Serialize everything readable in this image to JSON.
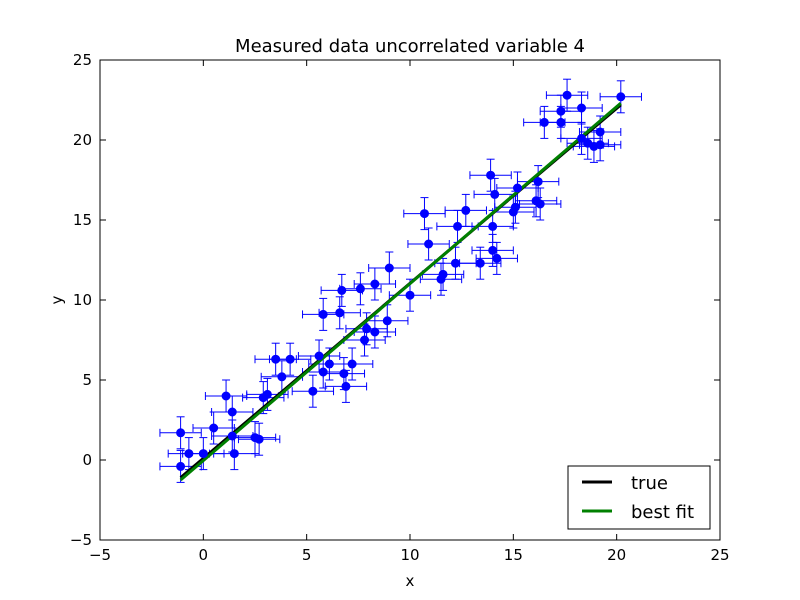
{
  "chart_data": {
    "type": "scatter",
    "title": "Measured data uncorrelated variable 4",
    "xlabel": "x",
    "ylabel": "y",
    "xlim": [
      -5,
      25
    ],
    "ylim": [
      -5,
      25
    ],
    "xticks": [
      -5,
      0,
      5,
      10,
      15,
      20,
      25
    ],
    "yticks": [
      -5,
      0,
      5,
      10,
      15,
      20,
      25
    ],
    "xtick_labels": [
      "−5",
      "0",
      "5",
      "10",
      "15",
      "20",
      "25"
    ],
    "ytick_labels": [
      "−5",
      "0",
      "5",
      "10",
      "15",
      "20",
      "25"
    ],
    "grid": false,
    "legend_position": "lower-right",
    "series": [
      {
        "kind": "errorbar",
        "color": "#0000ff",
        "x_err": 1.0,
        "y_err": 1.0,
        "points": [
          [
            -1.1,
            1.7
          ],
          [
            -1.1,
            -0.4
          ],
          [
            -0.7,
            0.4
          ],
          [
            0.0,
            0.4
          ],
          [
            0.5,
            2.0
          ],
          [
            1.1,
            4.0
          ],
          [
            1.4,
            3.0
          ],
          [
            1.5,
            0.4
          ],
          [
            1.4,
            1.5
          ],
          [
            2.5,
            1.4
          ],
          [
            2.7,
            1.3
          ],
          [
            2.9,
            3.9
          ],
          [
            3.1,
            4.1
          ],
          [
            3.5,
            6.3
          ],
          [
            3.8,
            5.2
          ],
          [
            4.2,
            6.3
          ],
          [
            5.3,
            4.3
          ],
          [
            5.6,
            6.5
          ],
          [
            5.8,
            9.1
          ],
          [
            5.8,
            5.5
          ],
          [
            6.1,
            6.0
          ],
          [
            6.6,
            9.2
          ],
          [
            6.7,
            10.6
          ],
          [
            6.8,
            5.4
          ],
          [
            6.9,
            4.6
          ],
          [
            7.2,
            6.0
          ],
          [
            7.6,
            10.7
          ],
          [
            7.8,
            7.5
          ],
          [
            7.9,
            8.2
          ],
          [
            8.3,
            11.0
          ],
          [
            8.3,
            8.0
          ],
          [
            8.9,
            8.7
          ],
          [
            9.0,
            12.0
          ],
          [
            10.0,
            10.3
          ],
          [
            10.7,
            15.4
          ],
          [
            10.9,
            13.5
          ],
          [
            11.5,
            11.3
          ],
          [
            11.6,
            11.6
          ],
          [
            12.2,
            12.3
          ],
          [
            12.3,
            14.6
          ],
          [
            12.7,
            15.6
          ],
          [
            13.4,
            12.3
          ],
          [
            13.9,
            17.8
          ],
          [
            14.0,
            13.1
          ],
          [
            14.0,
            14.6
          ],
          [
            14.1,
            16.6
          ],
          [
            14.2,
            12.6
          ],
          [
            15.0,
            15.5
          ],
          [
            15.1,
            15.8
          ],
          [
            15.2,
            17.0
          ],
          [
            16.1,
            16.2
          ],
          [
            16.2,
            17.4
          ],
          [
            16.3,
            16.0
          ],
          [
            16.5,
            21.1
          ],
          [
            17.3,
            21.8
          ],
          [
            17.3,
            21.1
          ],
          [
            17.6,
            22.8
          ],
          [
            18.3,
            22.0
          ],
          [
            18.3,
            20.1
          ],
          [
            18.6,
            19.8
          ],
          [
            18.9,
            19.6
          ],
          [
            19.2,
            20.5
          ],
          [
            19.2,
            19.7
          ],
          [
            20.2,
            22.7
          ]
        ]
      },
      {
        "name": "true",
        "kind": "line",
        "color": "#000000",
        "x": [
          -1.1,
          20.2
        ],
        "y": [
          -1.1,
          22.2
        ]
      },
      {
        "name": "best fit",
        "kind": "line",
        "color": "#008000",
        "x": [
          -1.1,
          20.2
        ],
        "y": [
          -1.25,
          22.3
        ]
      }
    ],
    "legend": [
      "true",
      "best fit"
    ]
  }
}
